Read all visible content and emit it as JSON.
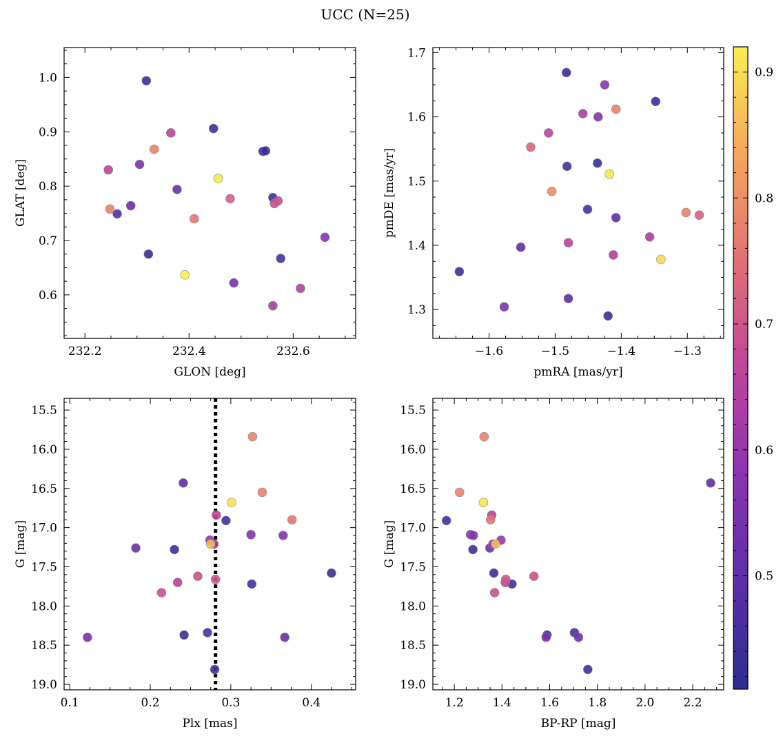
{
  "figure": {
    "title": "UCC (N=25)"
  },
  "colormap": {
    "name": "plasma",
    "stops": [
      "#2a2d8f",
      "#5b2fa8",
      "#8a33b0",
      "#c0449a",
      "#e07076",
      "#f6a55c",
      "#f7f050"
    ],
    "range": [
      0.41,
      0.92
    ],
    "ticks": [
      0.5,
      0.6,
      0.7,
      0.8,
      0.9
    ],
    "tick_labels": [
      "0.5",
      "0.6",
      "0.7",
      "0.8",
      "0.9"
    ]
  },
  "chart_data": [
    {
      "type": "scatter",
      "panel": "top-left",
      "xlabel": "GLON [deg]",
      "ylabel": "GLAT [deg]",
      "xlim": [
        232.16,
        232.72
      ],
      "ylim": [
        0.52,
        1.055
      ],
      "xticks": [
        232.2,
        232.4,
        232.6
      ],
      "xtick_labels": [
        "232.2",
        "232.4",
        "232.6"
      ],
      "yticks": [
        0.6,
        0.7,
        0.8,
        0.9,
        1.0
      ],
      "ytick_labels": [
        "0.6",
        "0.7",
        "0.8",
        "0.9",
        "1.0"
      ],
      "points": [
        {
          "x": 232.318,
          "y": 0.994,
          "c": 0.44
        },
        {
          "x": 232.365,
          "y": 0.898,
          "c": 0.66
        },
        {
          "x": 232.447,
          "y": 0.906,
          "c": 0.44
        },
        {
          "x": 232.333,
          "y": 0.868,
          "c": 0.78
        },
        {
          "x": 232.542,
          "y": 0.864,
          "c": 0.44
        },
        {
          "x": 232.547,
          "y": 0.865,
          "c": 0.44
        },
        {
          "x": 232.245,
          "y": 0.83,
          "c": 0.66
        },
        {
          "x": 232.305,
          "y": 0.84,
          "c": 0.55
        },
        {
          "x": 232.456,
          "y": 0.814,
          "c": 0.91
        },
        {
          "x": 232.377,
          "y": 0.794,
          "c": 0.52
        },
        {
          "x": 232.479,
          "y": 0.777,
          "c": 0.72
        },
        {
          "x": 232.561,
          "y": 0.779,
          "c": 0.45
        },
        {
          "x": 232.564,
          "y": 0.768,
          "c": 0.69
        },
        {
          "x": 232.571,
          "y": 0.773,
          "c": 0.68
        },
        {
          "x": 232.248,
          "y": 0.758,
          "c": 0.78
        },
        {
          "x": 232.288,
          "y": 0.764,
          "c": 0.52
        },
        {
          "x": 232.262,
          "y": 0.749,
          "c": 0.48
        },
        {
          "x": 232.41,
          "y": 0.74,
          "c": 0.76
        },
        {
          "x": 232.661,
          "y": 0.706,
          "c": 0.58
        },
        {
          "x": 232.322,
          "y": 0.675,
          "c": 0.44
        },
        {
          "x": 232.576,
          "y": 0.667,
          "c": 0.46
        },
        {
          "x": 232.392,
          "y": 0.637,
          "c": 0.92
        },
        {
          "x": 232.486,
          "y": 0.622,
          "c": 0.55
        },
        {
          "x": 232.614,
          "y": 0.612,
          "c": 0.64
        },
        {
          "x": 232.561,
          "y": 0.58,
          "c": 0.63
        }
      ]
    },
    {
      "type": "scatter",
      "panel": "top-right",
      "xlabel": "pmRA [mas/yr]",
      "ylabel": "pmDE [mas/yr]",
      "xlim": [
        -1.685,
        -1.245
      ],
      "ylim": [
        1.255,
        1.708
      ],
      "xticks": [
        -1.6,
        -1.5,
        -1.4,
        -1.3
      ],
      "xtick_labels": [
        "−1.6",
        "−1.5",
        "−1.4",
        "−1.3"
      ],
      "yticks": [
        1.3,
        1.4,
        1.5,
        1.6,
        1.7
      ],
      "ytick_labels": [
        "1.3",
        "1.4",
        "1.5",
        "1.6",
        "1.7"
      ],
      "points": [
        {
          "x": -1.483,
          "y": 1.669,
          "c": 0.44
        },
        {
          "x": -1.425,
          "y": 1.65,
          "c": 0.58
        },
        {
          "x": -1.348,
          "y": 1.624,
          "c": 0.44
        },
        {
          "x": -1.458,
          "y": 1.605,
          "c": 0.63
        },
        {
          "x": -1.408,
          "y": 1.612,
          "c": 0.78
        },
        {
          "x": -1.435,
          "y": 1.6,
          "c": 0.57
        },
        {
          "x": -1.51,
          "y": 1.575,
          "c": 0.66
        },
        {
          "x": -1.537,
          "y": 1.553,
          "c": 0.73
        },
        {
          "x": -1.482,
          "y": 1.523,
          "c": 0.46
        },
        {
          "x": -1.436,
          "y": 1.528,
          "c": 0.44
        },
        {
          "x": -1.418,
          "y": 1.511,
          "c": 0.91
        },
        {
          "x": -1.505,
          "y": 1.484,
          "c": 0.8
        },
        {
          "x": -1.451,
          "y": 1.456,
          "c": 0.46
        },
        {
          "x": -1.408,
          "y": 1.443,
          "c": 0.5
        },
        {
          "x": -1.302,
          "y": 1.451,
          "c": 0.78
        },
        {
          "x": -1.282,
          "y": 1.447,
          "c": 0.72
        },
        {
          "x": -1.357,
          "y": 1.413,
          "c": 0.63
        },
        {
          "x": -1.48,
          "y": 1.404,
          "c": 0.66
        },
        {
          "x": -1.552,
          "y": 1.397,
          "c": 0.5
        },
        {
          "x": -1.412,
          "y": 1.385,
          "c": 0.64
        },
        {
          "x": -1.34,
          "y": 1.378,
          "c": 0.89
        },
        {
          "x": -1.645,
          "y": 1.359,
          "c": 0.44
        },
        {
          "x": -1.48,
          "y": 1.317,
          "c": 0.5
        },
        {
          "x": -1.577,
          "y": 1.304,
          "c": 0.55
        },
        {
          "x": -1.42,
          "y": 1.29,
          "c": 0.44
        }
      ]
    },
    {
      "type": "scatter",
      "panel": "bottom-left",
      "xlabel": "Plx [mas]",
      "ylabel": "G [mag]",
      "xlim": [
        0.093,
        0.455
      ],
      "ylim": [
        19.07,
        15.35
      ],
      "y_inverted": true,
      "xticks": [
        0.1,
        0.2,
        0.3,
        0.4
      ],
      "xtick_labels": [
        "0.1",
        "0.2",
        "0.3",
        "0.4"
      ],
      "yticks": [
        15.5,
        16.0,
        16.5,
        17.0,
        17.5,
        18.0,
        18.5,
        19.0
      ],
      "ytick_labels": [
        "15.5",
        "16.0",
        "16.5",
        "17.0",
        "17.5",
        "18.0",
        "18.5",
        "19.0"
      ],
      "vline": {
        "x": 0.281,
        "style": "dotted",
        "color": "#000000"
      },
      "points": [
        {
          "x": 0.327,
          "y": 15.84,
          "c": 0.78
        },
        {
          "x": 0.241,
          "y": 16.43,
          "c": 0.5
        },
        {
          "x": 0.339,
          "y": 16.55,
          "c": 0.78
        },
        {
          "x": 0.301,
          "y": 16.68,
          "c": 0.91
        },
        {
          "x": 0.282,
          "y": 16.84,
          "c": 0.66
        },
        {
          "x": 0.294,
          "y": 16.91,
          "c": 0.46
        },
        {
          "x": 0.376,
          "y": 16.9,
          "c": 0.76
        },
        {
          "x": 0.325,
          "y": 17.09,
          "c": 0.57
        },
        {
          "x": 0.365,
          "y": 17.1,
          "c": 0.57
        },
        {
          "x": 0.274,
          "y": 17.16,
          "c": 0.6
        },
        {
          "x": 0.279,
          "y": 17.21,
          "c": 0.61
        },
        {
          "x": 0.275,
          "y": 17.21,
          "c": 0.86
        },
        {
          "x": 0.182,
          "y": 17.26,
          "c": 0.52
        },
        {
          "x": 0.23,
          "y": 17.28,
          "c": 0.44
        },
        {
          "x": 0.425,
          "y": 17.58,
          "c": 0.44
        },
        {
          "x": 0.259,
          "y": 17.62,
          "c": 0.69
        },
        {
          "x": 0.281,
          "y": 17.66,
          "c": 0.7
        },
        {
          "x": 0.234,
          "y": 17.7,
          "c": 0.66
        },
        {
          "x": 0.326,
          "y": 17.72,
          "c": 0.46
        },
        {
          "x": 0.214,
          "y": 17.83,
          "c": 0.69
        },
        {
          "x": 0.242,
          "y": 18.37,
          "c": 0.44
        },
        {
          "x": 0.271,
          "y": 18.34,
          "c": 0.46
        },
        {
          "x": 0.122,
          "y": 18.4,
          "c": 0.55
        },
        {
          "x": 0.367,
          "y": 18.4,
          "c": 0.52
        },
        {
          "x": 0.28,
          "y": 18.81,
          "c": 0.45
        }
      ]
    },
    {
      "type": "scatter",
      "panel": "bottom-right",
      "xlabel": "BP-RP [mag]",
      "ylabel": "G [mag]",
      "xlim": [
        1.11,
        2.33
      ],
      "ylim": [
        19.07,
        15.35
      ],
      "y_inverted": true,
      "xticks": [
        1.2,
        1.4,
        1.6,
        1.8,
        2.0,
        2.2
      ],
      "xtick_labels": [
        "1.2",
        "1.4",
        "1.6",
        "1.8",
        "2.0",
        "2.2"
      ],
      "yticks": [
        15.5,
        16.0,
        16.5,
        17.0,
        17.5,
        18.0,
        18.5,
        19.0
      ],
      "ytick_labels": [
        "15.5",
        "16.0",
        "16.5",
        "17.0",
        "17.5",
        "18.0",
        "18.5",
        "19.0"
      ],
      "points": [
        {
          "x": 1.325,
          "y": 15.84,
          "c": 0.78
        },
        {
          "x": 2.275,
          "y": 16.43,
          "c": 0.5
        },
        {
          "x": 1.222,
          "y": 16.55,
          "c": 0.78
        },
        {
          "x": 1.322,
          "y": 16.68,
          "c": 0.91
        },
        {
          "x": 1.357,
          "y": 16.84,
          "c": 0.66
        },
        {
          "x": 1.167,
          "y": 16.91,
          "c": 0.46
        },
        {
          "x": 1.352,
          "y": 16.9,
          "c": 0.76
        },
        {
          "x": 1.268,
          "y": 17.09,
          "c": 0.57
        },
        {
          "x": 1.28,
          "y": 17.1,
          "c": 0.57
        },
        {
          "x": 1.396,
          "y": 17.16,
          "c": 0.6
        },
        {
          "x": 1.362,
          "y": 17.21,
          "c": 0.61
        },
        {
          "x": 1.373,
          "y": 17.21,
          "c": 0.86
        },
        {
          "x": 1.349,
          "y": 17.26,
          "c": 0.52
        },
        {
          "x": 1.278,
          "y": 17.28,
          "c": 0.44
        },
        {
          "x": 1.366,
          "y": 17.58,
          "c": 0.44
        },
        {
          "x": 1.534,
          "y": 17.62,
          "c": 0.69
        },
        {
          "x": 1.416,
          "y": 17.66,
          "c": 0.7
        },
        {
          "x": 1.414,
          "y": 17.7,
          "c": 0.66
        },
        {
          "x": 1.442,
          "y": 17.72,
          "c": 0.46
        },
        {
          "x": 1.369,
          "y": 17.83,
          "c": 0.69
        },
        {
          "x": 1.589,
          "y": 18.37,
          "c": 0.44
        },
        {
          "x": 1.704,
          "y": 18.34,
          "c": 0.46
        },
        {
          "x": 1.585,
          "y": 18.4,
          "c": 0.55
        },
        {
          "x": 1.721,
          "y": 18.4,
          "c": 0.52
        },
        {
          "x": 1.76,
          "y": 18.81,
          "c": 0.45
        }
      ]
    }
  ]
}
